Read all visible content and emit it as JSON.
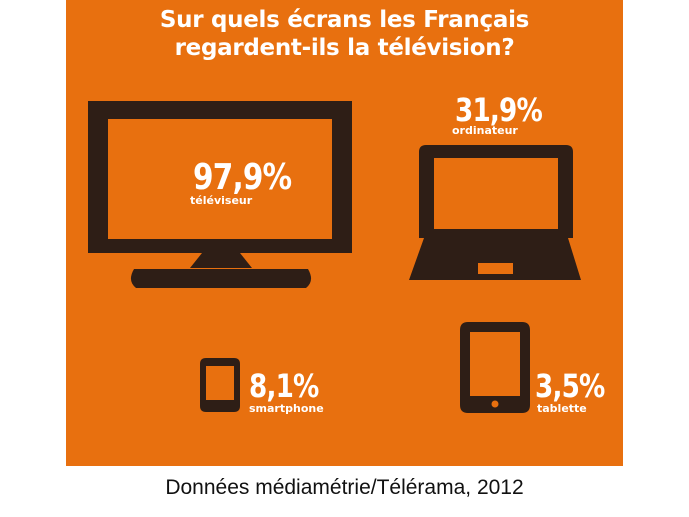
{
  "title_lines": [
    "Sur quels écrans les Français",
    "regardent-ils la télévision?"
  ],
  "source": "Données médiamétrie/Télérama, 2012",
  "colors": {
    "background": "#E8700F",
    "device": "#2E1E16",
    "text": "#ffffff"
  },
  "chart_data": {
    "type": "table",
    "categories": [
      "téléviseur",
      "ordinateur",
      "smartphone",
      "tablette"
    ],
    "values": [
      97.9,
      31.9,
      8.1,
      3.5
    ],
    "value_labels": [
      "97,9%",
      "31,9%",
      "8,1%",
      "3,5%"
    ],
    "unit": "%",
    "icons": [
      "tv-icon",
      "laptop-icon",
      "smartphone-icon",
      "tablet-icon"
    ]
  }
}
